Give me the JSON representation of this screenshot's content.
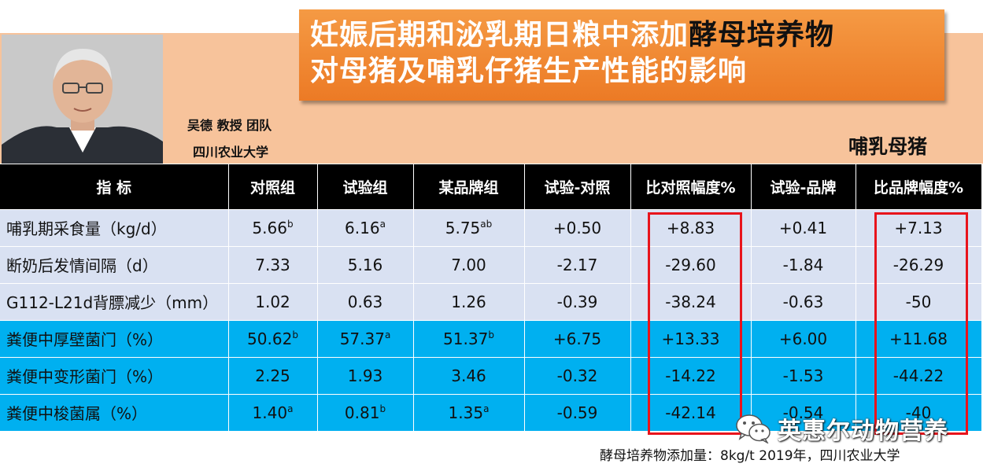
{
  "title": {
    "line1_main": "妊娠后期和泌乳期日粮中添加",
    "line1_highlight": "酵母培养物",
    "line2": "对母猪及哺乳仔猪生产性能的影响"
  },
  "author": {
    "team": "吴德   教授 团队",
    "university": "四川农业大学"
  },
  "subject": "哺乳母猪",
  "table": {
    "headers": [
      "指  标",
      "对照组",
      "试验组",
      "某品牌组",
      "试验-对照",
      "比对照幅度%",
      "试验-品牌",
      "比品牌幅度%"
    ],
    "rows": [
      {
        "label": "哺乳期采食量（kg/d）",
        "c1": "5.66",
        "c1s": "b",
        "c2": "6.16",
        "c2s": "a",
        "c3": "5.75",
        "c3s": "ab",
        "c4": "+0.50",
        "c5": "+8.83",
        "c6": "+0.41",
        "c7": "+7.13"
      },
      {
        "label": "断奶后发情间隔（d）",
        "c1": "7.33",
        "c1s": "",
        "c2": "5.16",
        "c2s": "",
        "c3": "7.00",
        "c3s": "",
        "c4": "-2.17",
        "c5": "-29.60",
        "c6": "-1.84",
        "c7": "-26.29"
      },
      {
        "label": "G112-L21d背膘减少（mm）",
        "c1": "1.02",
        "c1s": "",
        "c2": "0.63",
        "c2s": "",
        "c3": "1.26",
        "c3s": "",
        "c4": "-0.39",
        "c5": "-38.24",
        "c6": "-0.63",
        "c7": "-50"
      },
      {
        "label": "粪便中厚壁菌门（%）",
        "c1": "50.62",
        "c1s": "b",
        "c2": "57.37",
        "c2s": "a",
        "c3": "51.37",
        "c3s": "b",
        "c4": "+6.75",
        "c5": "+13.33",
        "c6": "+6.00",
        "c7": "+11.68"
      },
      {
        "label": "粪便中变形菌门（%）",
        "c1": "2.25",
        "c1s": "",
        "c2": "1.93",
        "c2s": "",
        "c3": "3.46",
        "c3s": "",
        "c4": "-0.32",
        "c5": "-14.22",
        "c6": "-1.53",
        "c7": "-44.22"
      },
      {
        "label": "粪便中梭菌属（%）",
        "c1": "1.40",
        "c1s": "a",
        "c2": "0.81",
        "c2s": "b",
        "c3": "1.35",
        "c3s": "a",
        "c4": "-0.59",
        "c5": "-42.14",
        "c6": "-0.54",
        "c7": "-40"
      }
    ]
  },
  "watermark": "英惠尔动物营养",
  "footnote": "酵母培养物添加量：8kg/t      2019年，四川农业大学",
  "colors": {
    "header_band": "#f7c39b",
    "title_orange": "#ec7a25",
    "row_light": "#d9e1f2",
    "row_blue": "#00b0f0",
    "highlight_box": "#e8141c"
  }
}
